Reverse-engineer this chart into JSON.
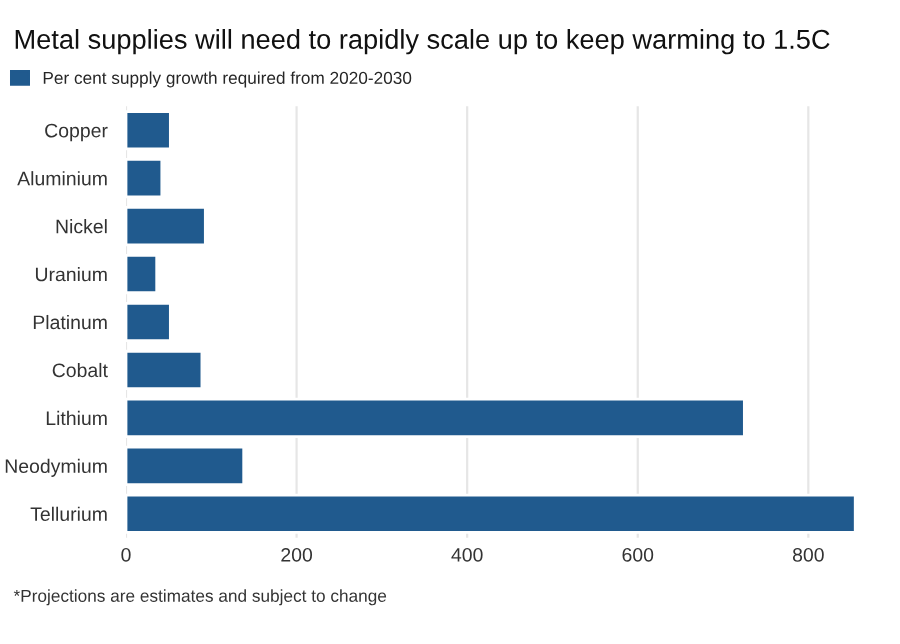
{
  "chart_data": {
    "type": "bar",
    "orientation": "horizontal",
    "title": "Metal supplies will need to rapidly scale up to keep warming to 1.5C",
    "categories": [
      "Copper",
      "Aluminium",
      "Nickel",
      "Uranium",
      "Platinum",
      "Cobalt",
      "Lithium",
      "Neodymium",
      "Tellurium"
    ],
    "series": [
      {
        "name": "Per cent supply growth required from 2020-2030",
        "color": "#205a8e",
        "values": [
          52,
          42,
          93,
          36,
          52,
          89,
          725,
          138,
          855
        ]
      }
    ],
    "xlim": [
      0,
      860
    ],
    "xticks": [
      0,
      200,
      400,
      600,
      800
    ],
    "grid": "x",
    "legend": "top left",
    "annotations": [
      "*Projections are estimates and subject to change"
    ]
  }
}
